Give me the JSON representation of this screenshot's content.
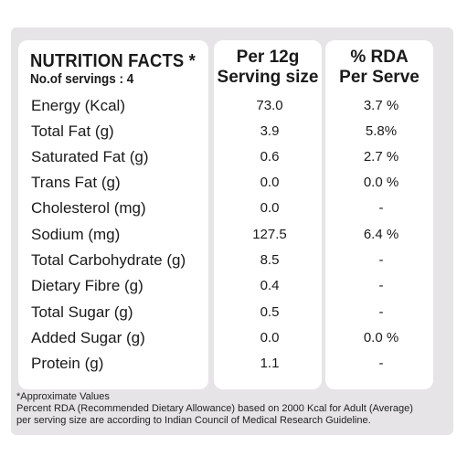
{
  "header": {
    "title": "NUTRITION FACTS *",
    "servings": "No.of servings : 4",
    "col_per": [
      "Per 12g",
      "Serving size"
    ],
    "col_rda": [
      "% RDA",
      "Per Serve"
    ]
  },
  "rows": [
    {
      "name": "Energy (Kcal)",
      "per": "73.0",
      "rda": "3.7 %"
    },
    {
      "name": "Total Fat (g)",
      "per": "3.9",
      "rda": "5.8%"
    },
    {
      "name": "Saturated Fat (g)",
      "per": "0.6",
      "rda": "2.7 %"
    },
    {
      "name": "Trans Fat (g)",
      "per": "0.0",
      "rda": "0.0 %"
    },
    {
      "name": "Cholesterol (mg)",
      "per": "0.0",
      "rda": "-"
    },
    {
      "name": "Sodium (mg)",
      "per": "127.5",
      "rda": "6.4 %"
    },
    {
      "name": "Total Carbohydrate (g)",
      "per": "8.5",
      "rda": "-"
    },
    {
      "name": "Dietary Fibre (g)",
      "per": "0.4",
      "rda": "-"
    },
    {
      "name": "Total Sugar (g)",
      "per": "0.5",
      "rda": "-"
    },
    {
      "name": "Added Sugar (g)",
      "per": "0.0",
      "rda": "0.0 %"
    },
    {
      "name": "Protein (g)",
      "per": "1.1",
      "rda": "-"
    }
  ],
  "footnotes": [
    "*Approximate Values",
    "Percent RDA (Recommended Dietary Allowance) based on 2000 Kcal for Adult (Average)",
    "per serving size are according to Indian Council of Medical Research Guideline."
  ]
}
